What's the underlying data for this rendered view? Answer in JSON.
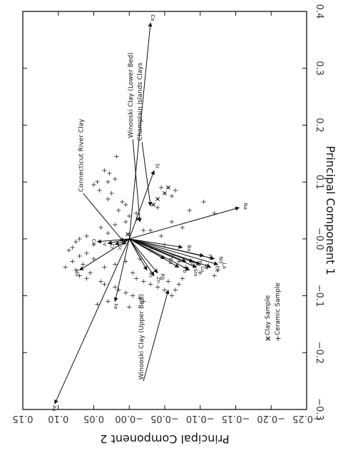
{
  "chart_data": {
    "type": "scatter",
    "title": "",
    "xlabel": "Principal Component 1",
    "ylabel": "Principal Component 2",
    "x_axis_position": "right (plot rotated 90°)",
    "y_axis_position": "bottom (plot rotated 90°)",
    "xlim": [
      -0.3,
      0.4
    ],
    "ylim": [
      -0.25,
      0.15
    ],
    "y_reversed": true,
    "x_ticks": [
      "−0.3",
      "−0.2",
      "−0.1",
      "−0.0",
      "0.1",
      "0.2",
      "0.3",
      "0.4"
    ],
    "y_ticks": [
      "0.15",
      "0.10",
      "0.05",
      "−0.00",
      "−0.05",
      "−0.10",
      "−0.15",
      "−0.20",
      "−0.25"
    ],
    "grid": false,
    "legend_position": "bottom-right",
    "legend": [
      {
        "marker": "x",
        "label": "Clay Sample"
      },
      {
        "marker": "+",
        "label": "Ceramic Sample"
      }
    ],
    "vectors": [
      {
        "name": "Ca",
        "x": 0.38,
        "y": -0.03
      },
      {
        "name": "Sr",
        "x": 0.12,
        "y": -0.035
      },
      {
        "name": "Na",
        "x": 0.055,
        "y": -0.155
      },
      {
        "name": "As",
        "x": -0.29,
        "y": 0.105
      },
      {
        "name": "Co",
        "x": -0.005,
        "y": 0.045
      },
      {
        "name": "Cr",
        "x": -0.01,
        "y": 0.02
      },
      {
        "name": "V",
        "x": -0.008,
        "y": 0.03
      },
      {
        "name": "Sc",
        "x": -0.01,
        "y": 0.01
      },
      {
        "name": "Mn",
        "x": -0.055,
        "y": 0.07
      },
      {
        "name": "Fe",
        "x": -0.11,
        "y": 0.02
      },
      {
        "name": "Ba",
        "x": -0.015,
        "y": -0.075
      },
      {
        "name": "Eu",
        "x": -0.035,
        "y": -0.05
      },
      {
        "name": "Hf",
        "x": -0.03,
        "y": -0.105
      },
      {
        "name": "Nd",
        "x": -0.035,
        "y": -0.12
      },
      {
        "name": "La",
        "x": -0.045,
        "y": -0.125
      },
      {
        "name": "Ce",
        "x": -0.05,
        "y": -0.115
      },
      {
        "name": "Ta",
        "x": -0.04,
        "y": -0.08
      },
      {
        "name": "Th",
        "x": -0.04,
        "y": -0.09
      },
      {
        "name": "Zn",
        "x": -0.065,
        "y": -0.035
      },
      {
        "name": "Sm",
        "x": -0.055,
        "y": -0.085
      },
      {
        "name": "Lu",
        "x": -0.05,
        "y": -0.095
      },
      {
        "name": "Tb",
        "x": -0.045,
        "y": -0.1
      },
      {
        "name": "Yb",
        "x": -0.05,
        "y": -0.07
      },
      {
        "name": "Rb",
        "x": -0.06,
        "y": -0.04
      },
      {
        "name": "Cs",
        "x": -0.055,
        "y": -0.025
      }
    ],
    "annotations": [
      {
        "text": "Connecticut River Clay",
        "x": -0.005,
        "y": 0.008,
        "from_x": 0.08,
        "from_y": 0.065
      },
      {
        "text": "Winooski Clay (Lower Bed)",
        "x": 0.03,
        "y": -0.015,
        "from_x": 0.175,
        "from_y": -0.005
      },
      {
        "text": "Champlain Islands Clays",
        "x": 0.058,
        "y": -0.03,
        "from_x": 0.17,
        "from_y": -0.018
      },
      {
        "text": "Winooski Clay (Upper Bed)",
        "x": -0.09,
        "y": -0.055,
        "from_x": -0.25,
        "from_y": -0.02
      }
    ],
    "clay_samples": [
      {
        "x": 0.008,
        "y": 0.002
      },
      {
        "x": 0.035,
        "y": -0.012
      },
      {
        "x": 0.06,
        "y": -0.034
      },
      {
        "x": 0.07,
        "y": -0.04
      },
      {
        "x": 0.08,
        "y": -0.05
      },
      {
        "x": 0.09,
        "y": -0.055
      }
    ],
    "ceramic_samples": [
      {
        "x": 0.145,
        "y": 0.018
      },
      {
        "x": 0.12,
        "y": 0.035
      },
      {
        "x": 0.115,
        "y": 0.028
      },
      {
        "x": 0.1,
        "y": 0.03
      },
      {
        "x": 0.105,
        "y": 0.02
      },
      {
        "x": 0.1,
        "y": 0.045
      },
      {
        "x": 0.095,
        "y": 0.05
      },
      {
        "x": 0.085,
        "y": 0.042
      },
      {
        "x": 0.08,
        "y": 0.025
      },
      {
        "x": 0.07,
        "y": 0.03
      },
      {
        "x": 0.065,
        "y": 0.01
      },
      {
        "x": 0.06,
        "y": 0.005
      },
      {
        "x": 0.05,
        "y": 0.015
      },
      {
        "x": 0.045,
        "y": -0.01
      },
      {
        "x": 0.04,
        "y": 0.0
      },
      {
        "x": 0.03,
        "y": 0.005
      },
      {
        "x": 0.025,
        "y": 0.02
      },
      {
        "x": 0.02,
        "y": 0.04
      },
      {
        "x": 0.015,
        "y": -0.02
      },
      {
        "x": 0.01,
        "y": 0.03
      },
      {
        "x": 0.005,
        "y": 0.06
      },
      {
        "x": 0.0,
        "y": 0.07
      },
      {
        "x": -0.005,
        "y": 0.075
      },
      {
        "x": -0.01,
        "y": 0.05
      },
      {
        "x": -0.015,
        "y": 0.08
      },
      {
        "x": -0.02,
        "y": 0.085
      },
      {
        "x": -0.025,
        "y": 0.06
      },
      {
        "x": -0.03,
        "y": 0.07
      },
      {
        "x": -0.035,
        "y": 0.05
      },
      {
        "x": -0.04,
        "y": 0.08
      },
      {
        "x": -0.045,
        "y": 0.065
      },
      {
        "x": -0.05,
        "y": 0.09
      },
      {
        "x": -0.055,
        "y": 0.075
      },
      {
        "x": -0.06,
        "y": 0.055
      },
      {
        "x": -0.065,
        "y": 0.07
      },
      {
        "x": -0.07,
        "y": 0.06
      },
      {
        "x": -0.075,
        "y": 0.04
      },
      {
        "x": -0.08,
        "y": 0.035
      },
      {
        "x": -0.085,
        "y": 0.02
      },
      {
        "x": -0.09,
        "y": 0.015
      },
      {
        "x": -0.095,
        "y": 0.005
      },
      {
        "x": -0.1,
        "y": -0.005
      },
      {
        "x": -0.105,
        "y": -0.015
      },
      {
        "x": -0.11,
        "y": -0.02
      },
      {
        "x": -0.06,
        "y": -0.005
      },
      {
        "x": -0.07,
        "y": -0.01
      },
      {
        "x": -0.075,
        "y": -0.02
      },
      {
        "x": -0.08,
        "y": -0.03
      },
      {
        "x": -0.085,
        "y": -0.04
      },
      {
        "x": -0.09,
        "y": -0.05
      },
      {
        "x": -0.1,
        "y": -0.06
      },
      {
        "x": -0.02,
        "y": -0.03
      },
      {
        "x": -0.03,
        "y": -0.06
      },
      {
        "x": -0.04,
        "y": -0.07
      },
      {
        "x": -0.05,
        "y": -0.08
      },
      {
        "x": -0.06,
        "y": -0.1
      },
      {
        "x": -0.065,
        "y": -0.12
      },
      {
        "x": -0.055,
        "y": -0.125
      },
      {
        "x": -0.05,
        "y": -0.11
      },
      {
        "x": 0.065,
        "y": -0.105
      },
      {
        "x": 0.045,
        "y": -0.12
      },
      {
        "x": 0.05,
        "y": -0.085
      },
      {
        "x": 0.03,
        "y": -0.06
      },
      {
        "x": 0.02,
        "y": -0.075
      },
      {
        "x": -0.01,
        "y": -0.05
      },
      {
        "x": 0.005,
        "y": -0.045
      },
      {
        "x": 0.015,
        "y": -0.03
      },
      {
        "x": 0.075,
        "y": -0.06
      },
      {
        "x": 0.085,
        "y": -0.065
      },
      {
        "x": 0.09,
        "y": -0.045
      },
      {
        "x": 0.055,
        "y": -0.04
      },
      {
        "x": -0.035,
        "y": -0.015
      },
      {
        "x": -0.04,
        "y": 0.005
      },
      {
        "x": -0.045,
        "y": 0.02
      },
      {
        "x": -0.05,
        "y": 0.035
      },
      {
        "x": -0.075,
        "y": -0.055
      },
      {
        "x": -0.08,
        "y": -0.07
      },
      {
        "x": -0.09,
        "y": -0.065
      },
      {
        "x": -0.07,
        "y": -0.075
      },
      {
        "x": -0.11,
        "y": 0.03
      },
      {
        "x": -0.115,
        "y": 0.045
      },
      {
        "x": -0.12,
        "y": 0.0
      }
    ]
  },
  "legend": {
    "clay_label": "Clay Sample",
    "ceramic_label": "Ceramic Sample"
  }
}
